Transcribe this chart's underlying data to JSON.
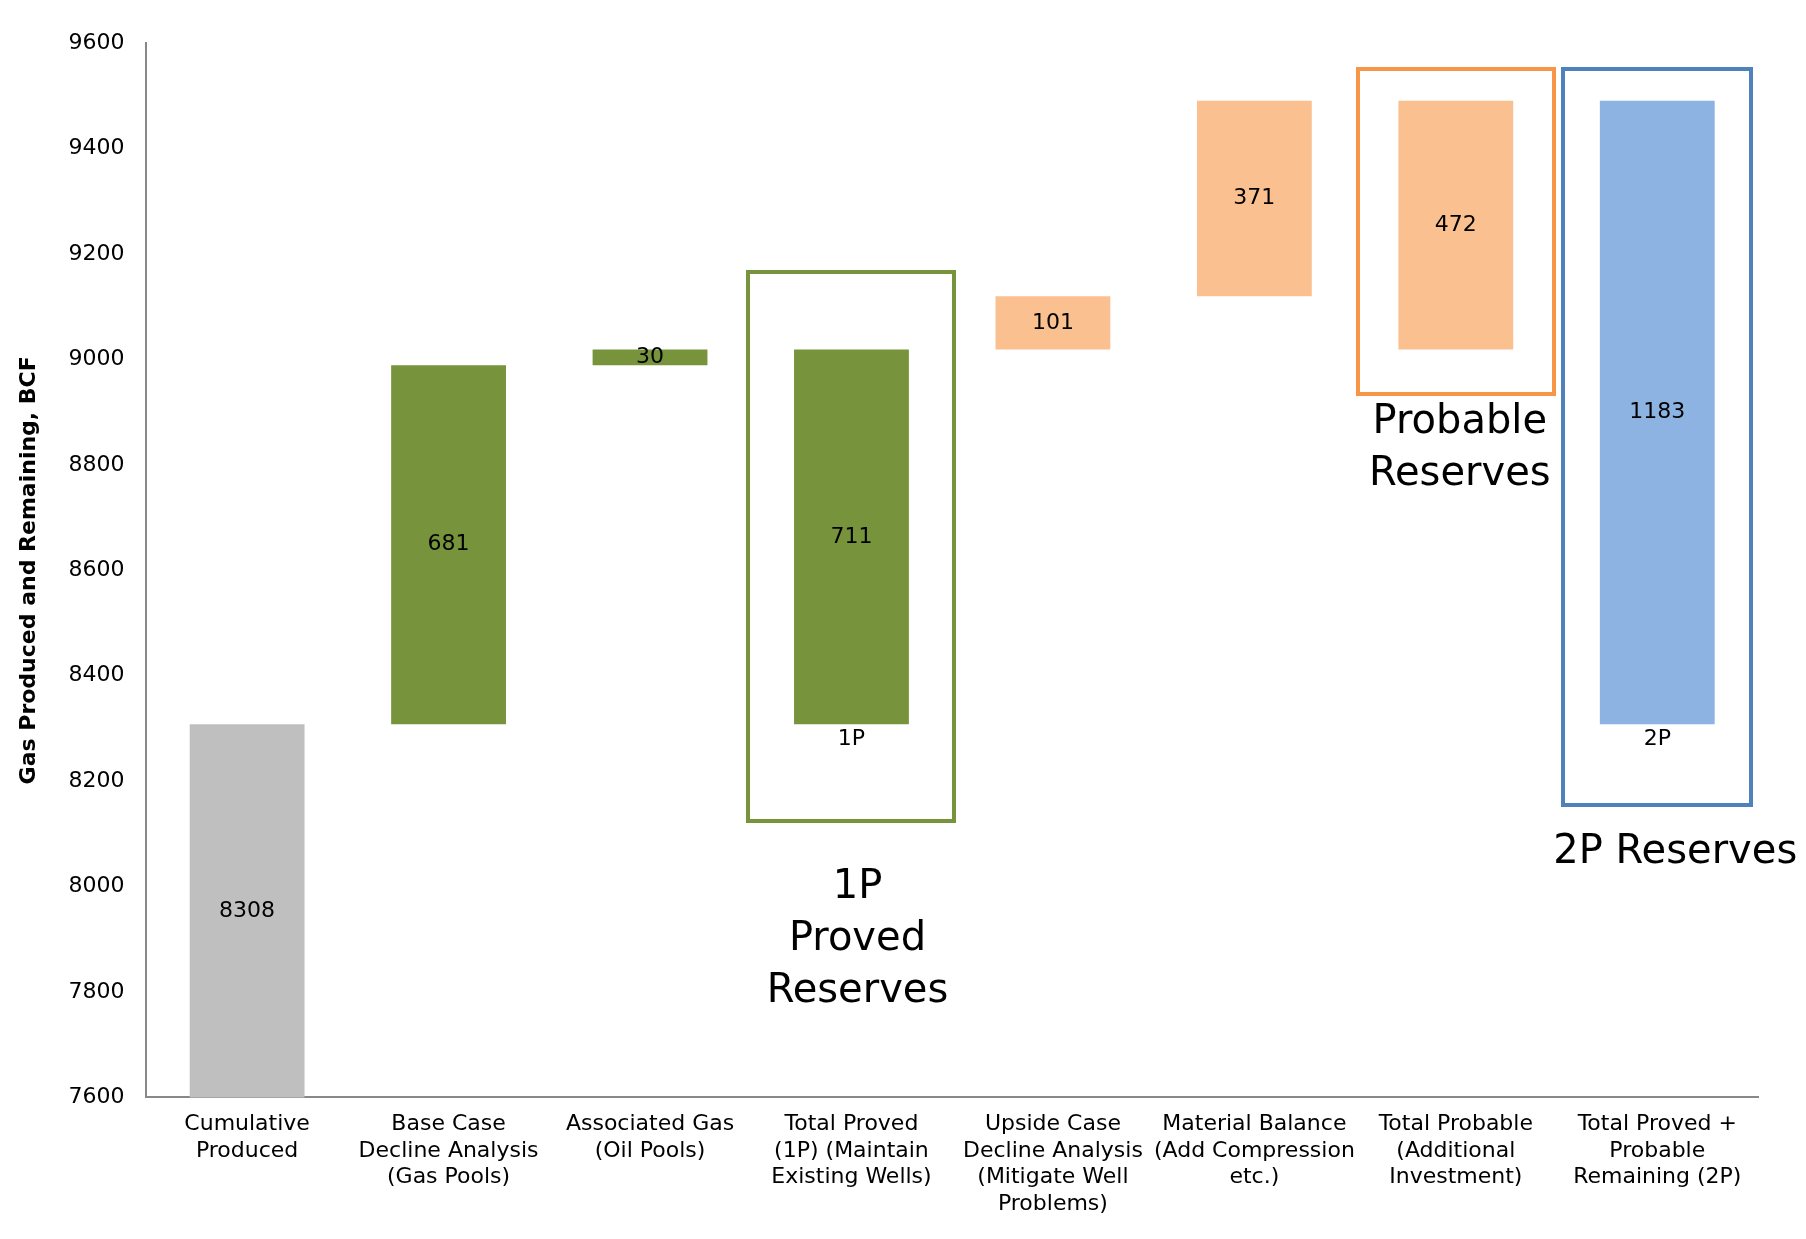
{
  "chart_data": {
    "type": "bar",
    "ylabel": "Gas Produced and Remaining, BCF",
    "categories": [
      "Cumulative Produced",
      "Base Case Decline Analysis (Gas Pools)",
      "Associated Gas (Oil Pools)",
      "Total Proved (1P)  (Maintain Existing Wells)",
      "Upside Case Decline Analysis (Mitigate Well Problems)",
      "Material Balance (Add Compression etc.)",
      "Total Probable (Additional Investment)",
      "Total Proved + Probable Remaining (2P)"
    ],
    "values": [
      8308,
      681,
      30,
      711,
      101,
      371,
      472,
      1183
    ],
    "base": [
      null,
      8308,
      8989,
      8308,
      9019,
      9120,
      9019,
      8308
    ],
    "colors": [
      "#bfbfbf",
      "#77933c",
      "#77933c",
      "#77933c",
      "#fac090",
      "#fac090",
      "#fac090",
      "#8db3e2"
    ],
    "data_labels": true,
    "ylim": [
      7600,
      9600
    ],
    "yticks": [
      7600,
      7800,
      8000,
      8200,
      8400,
      8600,
      8800,
      9000,
      9200,
      9400,
      9600
    ],
    "grid": false,
    "legend": false,
    "annotations": [
      {
        "text": "1P",
        "x": "Total Proved (1P)  (Maintain Existing Wells)",
        "y": 8308
      },
      {
        "text": "2P",
        "x": "Total Proved + Probable Remaining (2P)",
        "y": 8308
      },
      "1P Proved Reserves",
      "Probable Reserves",
      "2P Reserves"
    ]
  }
}
